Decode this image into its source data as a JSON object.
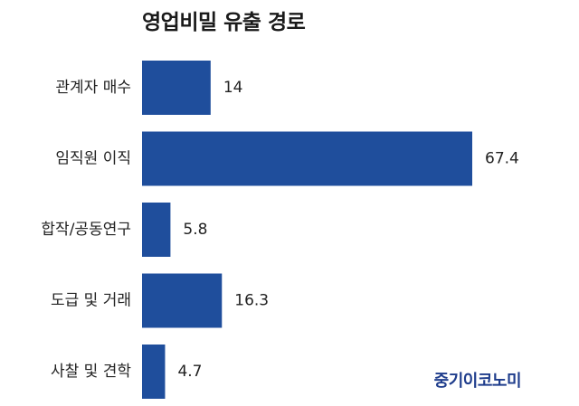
{
  "chart_data": {
    "type": "bar",
    "orientation": "horizontal",
    "title": "영업비밀 유출 경로",
    "categories": [
      "관계자 매수",
      "임직원 이직",
      "합작/공동연구",
      "도급 및 거래",
      "사찰 및 견학"
    ],
    "values": [
      14,
      67.4,
      5.8,
      16.3,
      4.7
    ],
    "value_labels": [
      "14",
      "67.4",
      "5.8",
      "16.3",
      "4.7"
    ],
    "xlim": [
      0,
      67.4
    ],
    "grid": false,
    "legend": "none"
  },
  "colors": {
    "bar": "#1f4e9c",
    "watermark": "#1f3d8c"
  },
  "watermark": {
    "text": "중기이코노미"
  }
}
